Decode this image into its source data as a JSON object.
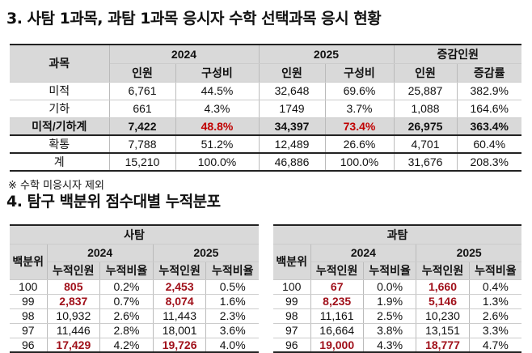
{
  "section3": {
    "title": "3. 사탐 1과목, 과탐 1과목 응시자 수학 선택과목 응시 현황",
    "headers": {
      "subject": "과목",
      "y2024": "2024",
      "y2025": "2025",
      "change": "증감인원",
      "count": "인원",
      "ratio": "구성비",
      "rate": "증감률"
    },
    "rows": [
      [
        "미적",
        "6,761",
        "44.5%",
        "32,648",
        "69.6%",
        "25,887",
        "382.9%"
      ],
      [
        "기하",
        "661",
        "4.3%",
        "1749",
        "3.7%",
        "1,088",
        "164.6%"
      ],
      [
        "미적/기하계",
        "7,422",
        "48.8%",
        "34,397",
        "73.4%",
        "26,975",
        "363.4%"
      ],
      [
        "확통",
        "7,788",
        "51.2%",
        "12,489",
        "26.6%",
        "4,701",
        "60.4%"
      ],
      [
        "계",
        "15,210",
        "100.0%",
        "46,886",
        "100.0%",
        "31,676",
        "208.3%"
      ]
    ],
    "note": "※ 수학 미응시자 제외"
  },
  "section4": {
    "title": "4. 탐구 백분위 점수대별 누적분포",
    "headers": {
      "percentile": "백분위",
      "y2024": "2024",
      "y2025": "2025",
      "cum_count": "누적인원",
      "cum_ratio": "누적비율"
    },
    "tables": [
      {
        "name": "사탐",
        "rows": [
          [
            "100",
            "805",
            "0.2%",
            "2,453",
            "0.5%"
          ],
          [
            "99",
            "2,837",
            "0.7%",
            "8,074",
            "1.6%"
          ],
          [
            "98",
            "10,932",
            "2.6%",
            "11,443",
            "2.3%"
          ],
          [
            "97",
            "11,446",
            "2.8%",
            "18,001",
            "3.6%"
          ],
          [
            "96",
            "17,429",
            "4.2%",
            "19,726",
            "4.0%"
          ]
        ]
      },
      {
        "name": "과탐",
        "rows": [
          [
            "100",
            "67",
            "0.0%",
            "1,660",
            "0.4%"
          ],
          [
            "99",
            "8,235",
            "1.9%",
            "5,146",
            "1.3%"
          ],
          [
            "98",
            "11,161",
            "2.5%",
            "10,230",
            "2.6%"
          ],
          [
            "97",
            "16,664",
            "3.8%",
            "13,151",
            "3.3%"
          ],
          [
            "96",
            "19,000",
            "4.3%",
            "18,777",
            "4.7%"
          ]
        ]
      }
    ]
  },
  "colors": {
    "red": "#c00000",
    "header_bg": "#d9d9d9"
  }
}
